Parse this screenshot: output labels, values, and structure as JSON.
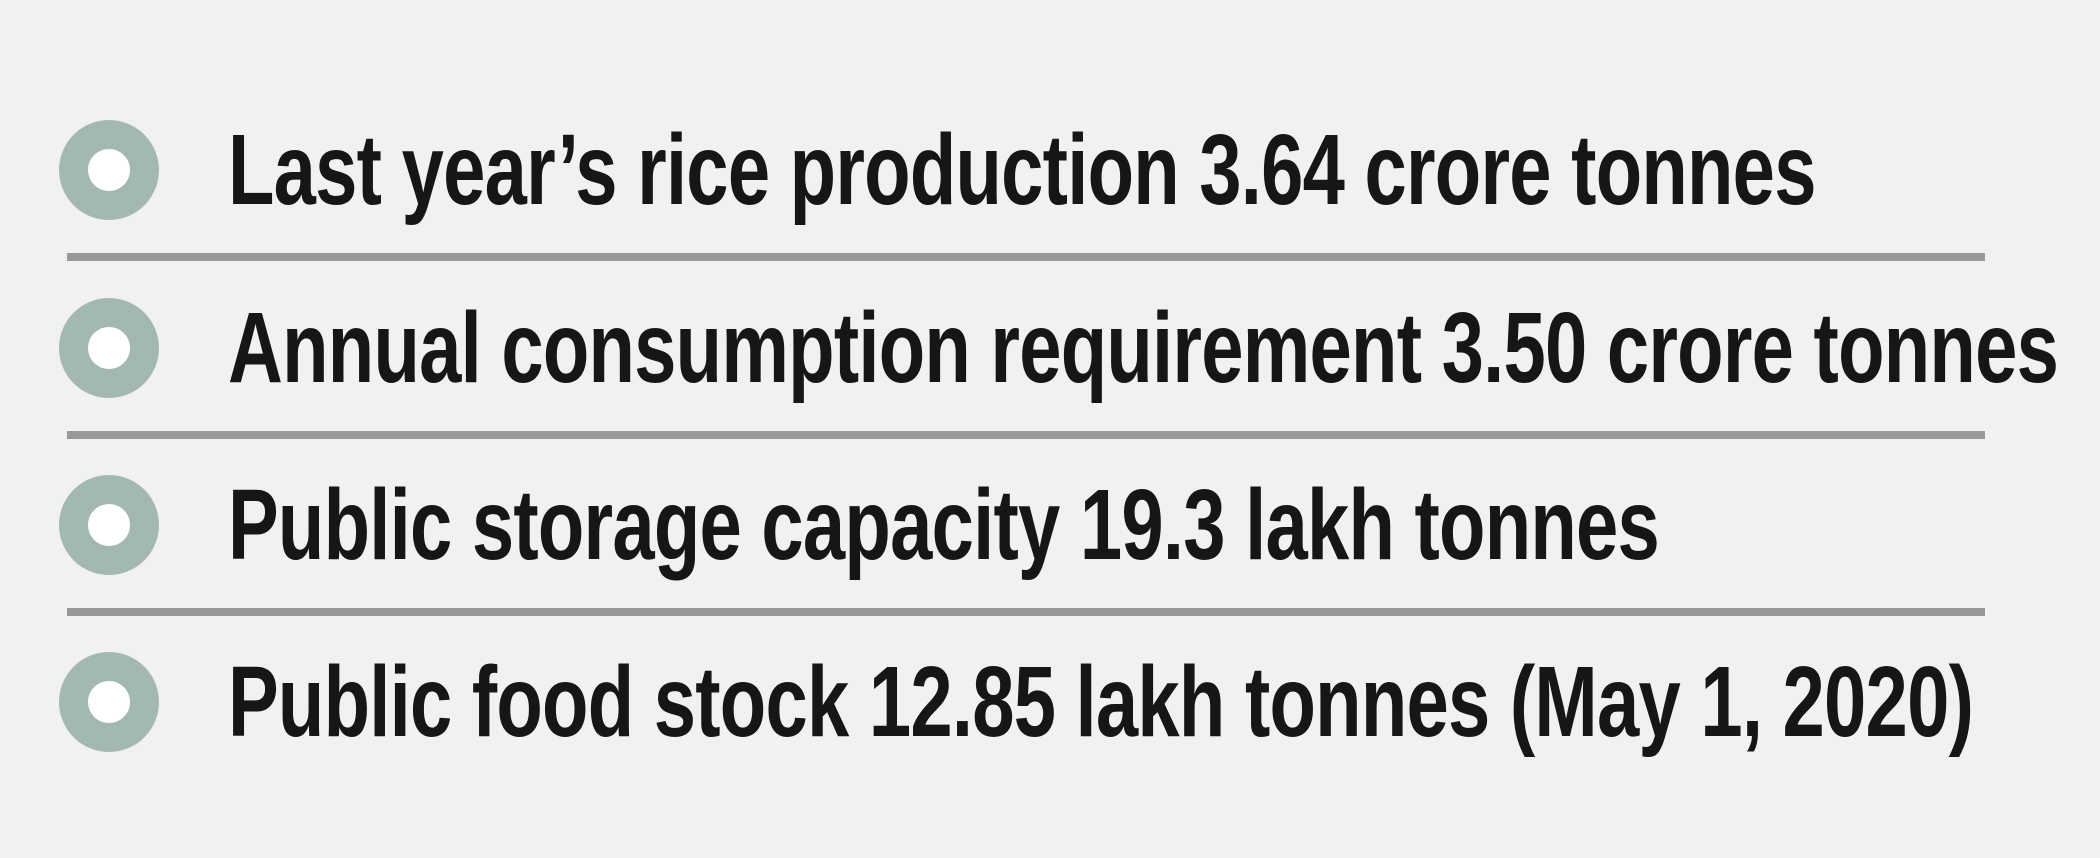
{
  "colors": {
    "background": "#f1f1f0",
    "bullet-ring": "#a3b8b0",
    "bullet-hole": "#ffffff",
    "divider": "#989898",
    "text": "#161616"
  },
  "items": [
    {
      "text": "Last year’s rice production 3.64 crore tonnes"
    },
    {
      "text": "Annual consumption requirement 3.50 crore tonnes"
    },
    {
      "text": "Public storage capacity 19.3 lakh tonnes"
    },
    {
      "text": "Public food stock 12.85 lakh tonnes (May 1, 2020)"
    }
  ]
}
